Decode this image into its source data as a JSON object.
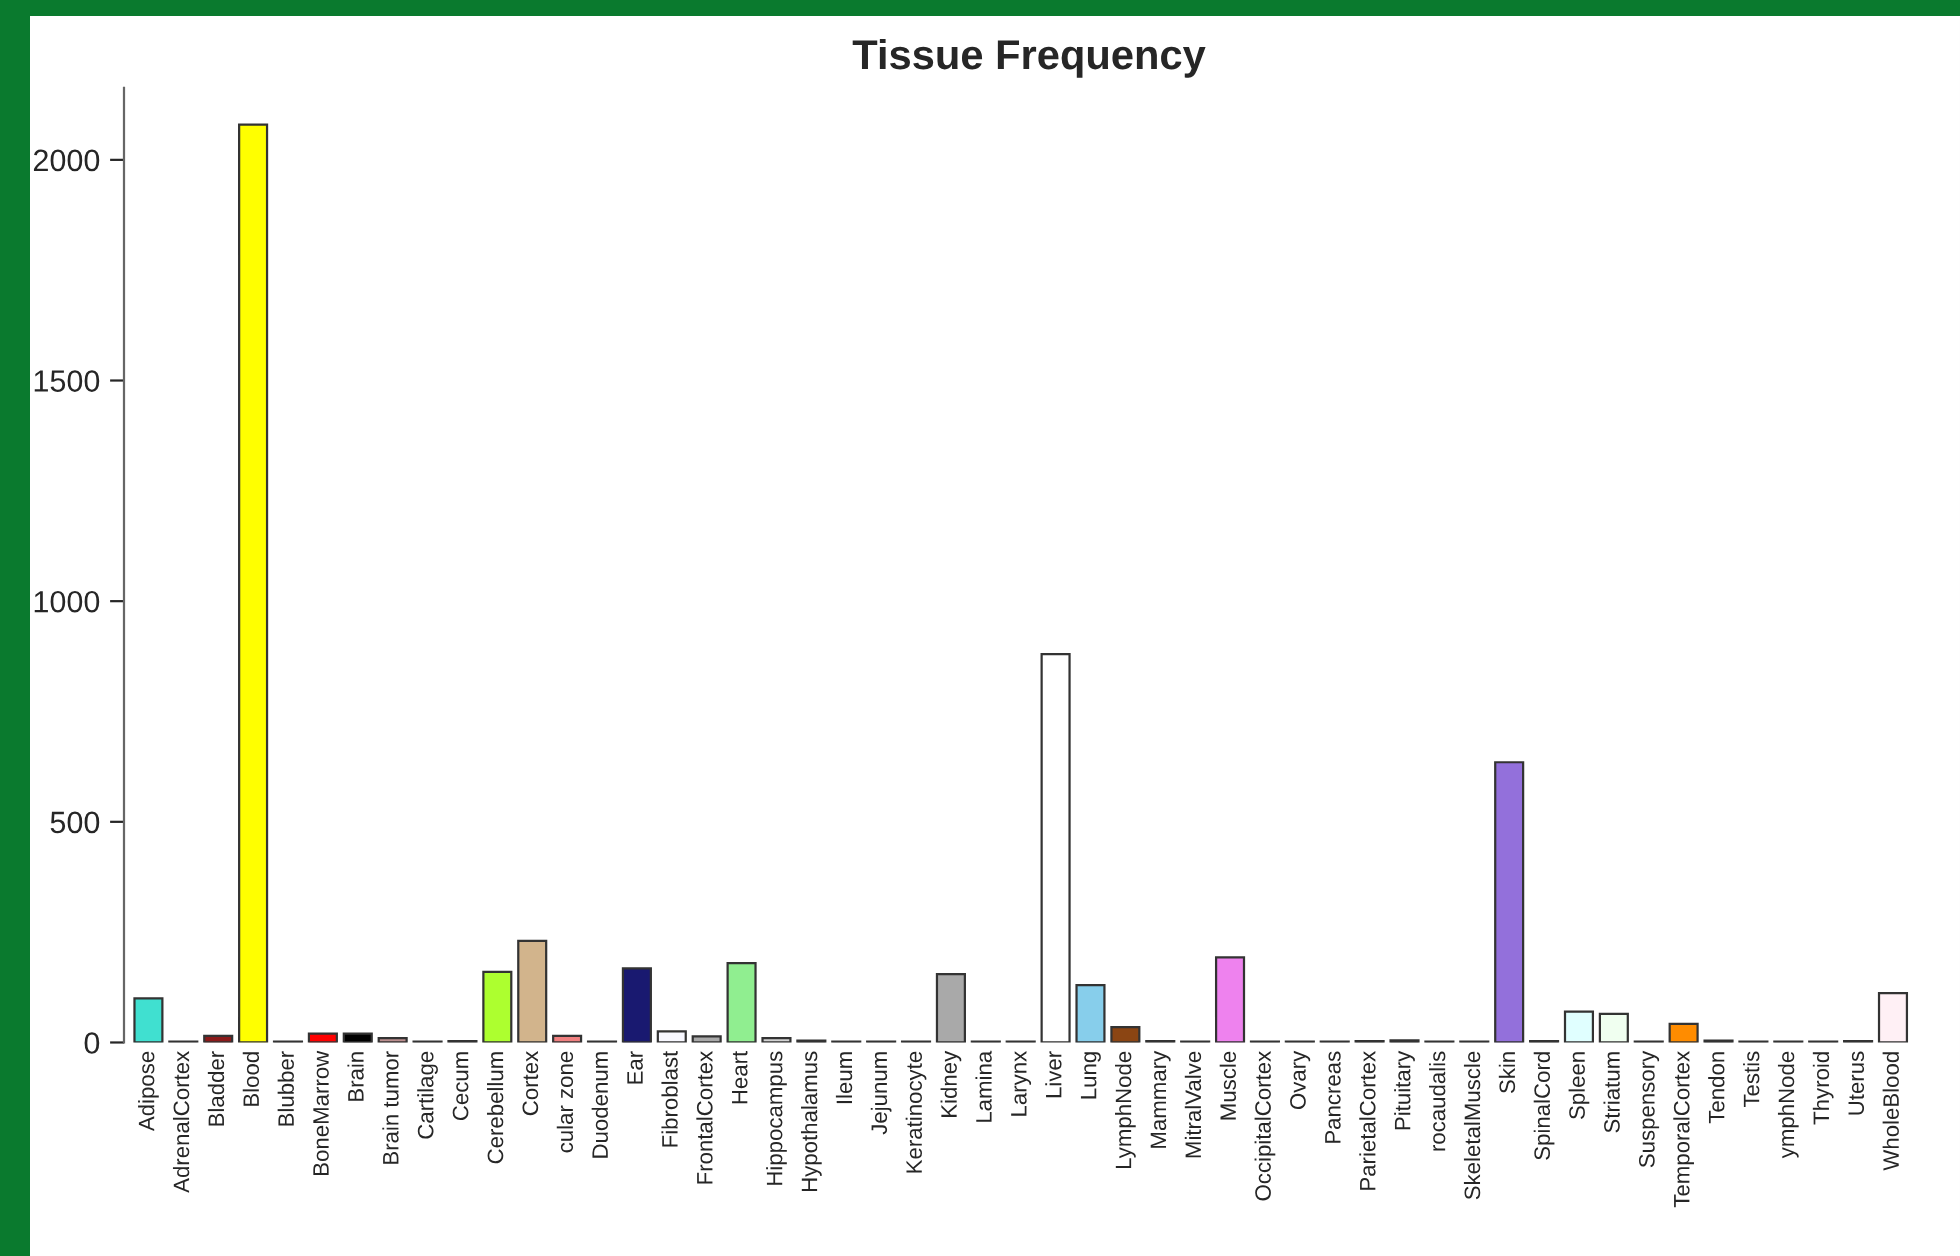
{
  "chart_data": {
    "type": "bar",
    "title": "Tissue Frequency",
    "categories": [
      "Adipose",
      "AdrenalCortex",
      "Bladder",
      "Blood",
      "Blubber",
      "BoneMarrow",
      "Brain",
      "Brain tumor",
      "Cartilage",
      "Cecum",
      "Cerebellum",
      "Cortex",
      "cular zone",
      "Duodenum",
      "Ear",
      "Fibroblast",
      "FrontalCortex",
      "Heart",
      "Hippocampus",
      "Hypothalamus",
      "Ileum",
      "Jejunum",
      "Keratinocyte",
      "Kidney",
      "Lamina",
      "Larynx",
      "Liver",
      "Lung",
      "LymphNode",
      "Mammary",
      "MitralValve",
      "Muscle",
      "OccipitalCortex",
      "Ovary",
      "Pancreas",
      "ParietalCortex",
      "Pituitary",
      "rocaudalis",
      "SkeletalMuscle",
      "Skin",
      "SpinalCord",
      "Spleen",
      "Striatum",
      "Suspensory",
      "TemporalCortex",
      "Tendon",
      "Testis",
      "ymphNode",
      "Thyroid",
      "Uterus",
      "WholeBlood"
    ],
    "values": [
      100,
      2,
      15,
      2080,
      2,
      20,
      20,
      10,
      2,
      3,
      160,
      230,
      15,
      2,
      168,
      25,
      14,
      180,
      10,
      4,
      2,
      2,
      2,
      155,
      2,
      2,
      880,
      130,
      35,
      3,
      2,
      193,
      2,
      2,
      2,
      3,
      5,
      2,
      2,
      635,
      3,
      70,
      65,
      2,
      42,
      4,
      2,
      2,
      2,
      3,
      112
    ],
    "colors": [
      "#40e0d0",
      "#b0b0b0",
      "#8b1a1a",
      "#ffff00",
      "#808080",
      "#ff0000",
      "#000000",
      "#bc8f8f",
      "#a0a0a0",
      "#a0a0a0",
      "#adff2f",
      "#d2b48c",
      "#f08080",
      "#a0a0a0",
      "#191970",
      "#f8f8ff",
      "#a9a9a9",
      "#90ee90",
      "#d3d3d3",
      "#808080",
      "#a0a0a0",
      "#a0a0a0",
      "#a0a0a0",
      "#a9a9a9",
      "#a0a0a0",
      "#a0a0a0",
      "#ffffff",
      "#87ceeb",
      "#8b4513",
      "#a0a0a0",
      "#a0a0a0",
      "#ee82ee",
      "#a0a0a0",
      "#a0a0a0",
      "#a0a0a0",
      "#808080",
      "#808080",
      "#a0a0a0",
      "#a0a0a0",
      "#9370db",
      "#808080",
      "#e0ffff",
      "#f0fff0",
      "#a0a0a0",
      "#ff8c00",
      "#808080",
      "#a0a0a0",
      "#a0a0a0",
      "#a0a0a0",
      "#a0a0a0",
      "#fff0f5"
    ],
    "ylim": [
      0,
      2163
    ],
    "yticks": [
      0,
      500,
      1000,
      1500,
      2000
    ],
    "grid": false
  }
}
